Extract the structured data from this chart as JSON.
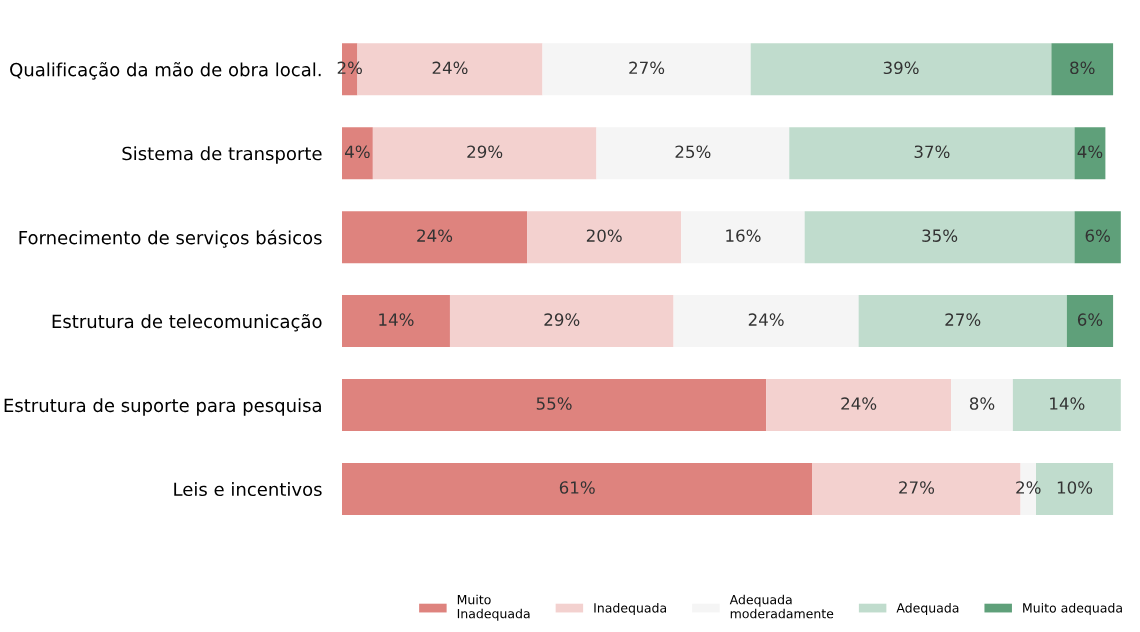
{
  "chart_data": {
    "type": "bar",
    "orientation": "horizontal",
    "stacked": true,
    "categories": [
      "Qualificação da mão de obra local.",
      "Sistema de transporte",
      "Fornecimento de serviços básicos",
      "Estrutura de telecomunicação",
      "Estrutura de suporte para pesquisa",
      "Leis e incentivos"
    ],
    "series": [
      {
        "name": "Muito\nInadequada",
        "color": "#de837e",
        "values": [
          2,
          4,
          24,
          14,
          55,
          61
        ],
        "value_labels": [
          "2%",
          "4%",
          "24%",
          "14%",
          "55%",
          "61%"
        ]
      },
      {
        "name": "Inadequada",
        "color": "#f3d1cf",
        "values": [
          24,
          29,
          20,
          29,
          24,
          27
        ],
        "value_labels": [
          "24%",
          "29%",
          "20%",
          "29%",
          "24%",
          "27%"
        ]
      },
      {
        "name": "Adequada\nmoderadamente",
        "color": "#f5f5f5",
        "values": [
          27,
          25,
          16,
          24,
          8,
          2
        ],
        "value_labels": [
          "27%",
          "25%",
          "16%",
          "24%",
          "8%",
          "2%"
        ]
      },
      {
        "name": "Adequada",
        "color": "#c0dccd",
        "values": [
          39,
          37,
          35,
          27,
          14,
          10
        ],
        "value_labels": [
          "39%",
          "37%",
          "35%",
          "27%",
          "14%",
          "10%"
        ]
      },
      {
        "name": "Muito adequada",
        "color": "#5fa07a",
        "values": [
          8,
          4,
          6,
          6,
          null,
          null
        ],
        "value_labels": [
          "8%",
          "4%",
          "6%",
          "6%",
          null,
          null
        ]
      }
    ],
    "tick_labels": "y",
    "legend": "bottom",
    "grid": false
  }
}
